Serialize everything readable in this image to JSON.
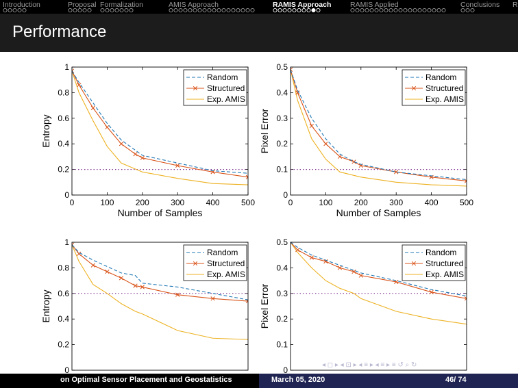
{
  "nav": {
    "sections": [
      {
        "label": "Introduction",
        "dots": 5,
        "filled": -1
      },
      {
        "label": "Proposal",
        "dots": 5,
        "filled": -1
      },
      {
        "label": "Formalization",
        "dots": 7,
        "filled": -1
      },
      {
        "label": "AMIS Approach",
        "dots": 18,
        "filled": -1
      },
      {
        "label": "RAMIS Approach",
        "dots": 10,
        "filled": 8,
        "active": true
      },
      {
        "label": "RAMIS Applied",
        "dots": 20,
        "filled": -1
      },
      {
        "label": "Conclusions",
        "dots": 3,
        "filled": -1
      },
      {
        "label": "R",
        "dots": 0,
        "filled": -1
      }
    ]
  },
  "frame_title": "Performance",
  "footer": {
    "title": "on Optimal Sensor Placement and Geostatistics",
    "date": "March 05, 2020",
    "page": "46/ 74"
  },
  "beamer_nav_symbols": "◂ ◻ ▸ ◂ ⊡ ▸ ◂ ≡ ▸ ◂ ≡ ▸ ≡ ↺ ⌕ ↻",
  "colors": {
    "random": "#1f77b4",
    "structured": "#d95319",
    "exp": "#edb120",
    "threshold": "#7e2f8e"
  },
  "chart_data": [
    {
      "type": "line",
      "xlabel": "Number of Samples",
      "ylabel": "Entropy",
      "xlim": [
        0,
        500
      ],
      "ylim": [
        0,
        1
      ],
      "xticks": [
        0,
        100,
        200,
        300,
        400,
        500
      ],
      "yticks": [
        0,
        0.2,
        0.4,
        0.6,
        0.8,
        1
      ],
      "ytick_labels": [
        "0",
        "0.2",
        "0.4",
        "0.6",
        "0.8",
        "1"
      ],
      "threshold": 0.2,
      "legend": "top-right",
      "series": [
        {
          "name": "Random",
          "style": "dashed",
          "x": [
            0,
            20,
            60,
            100,
            140,
            180,
            200,
            300,
            400,
            500
          ],
          "y": [
            0.97,
            0.88,
            0.72,
            0.56,
            0.43,
            0.35,
            0.31,
            0.25,
            0.19,
            0.17
          ]
        },
        {
          "name": "Structured",
          "style": "marker",
          "x": [
            0,
            20,
            60,
            100,
            140,
            180,
            200,
            300,
            400,
            500
          ],
          "y": [
            0.97,
            0.86,
            0.68,
            0.53,
            0.4,
            0.32,
            0.29,
            0.23,
            0.18,
            0.14
          ]
        },
        {
          "name": "Exp. AMIS",
          "style": "solid",
          "x": [
            0,
            20,
            60,
            100,
            140,
            200,
            300,
            400,
            500
          ],
          "y": [
            0.97,
            0.8,
            0.58,
            0.38,
            0.25,
            0.18,
            0.13,
            0.09,
            0.08
          ]
        }
      ]
    },
    {
      "type": "line",
      "xlabel": "Number of Samples",
      "ylabel": "Pixel Error",
      "xlim": [
        0,
        500
      ],
      "ylim": [
        0,
        0.5
      ],
      "xticks": [
        0,
        100,
        200,
        300,
        400,
        500
      ],
      "yticks": [
        0,
        0.1,
        0.2,
        0.3,
        0.4,
        0.5
      ],
      "ytick_labels": [
        "0",
        "0.1",
        "0.2",
        "0.3",
        "0.4",
        "0.5"
      ],
      "threshold": 0.1,
      "legend": "top-right",
      "series": [
        {
          "name": "Random",
          "style": "dashed",
          "x": [
            0,
            20,
            60,
            100,
            140,
            180,
            200,
            300,
            400,
            500
          ],
          "y": [
            0.49,
            0.41,
            0.3,
            0.22,
            0.16,
            0.13,
            0.12,
            0.09,
            0.075,
            0.06
          ]
        },
        {
          "name": "Structured",
          "style": "marker",
          "x": [
            0,
            20,
            60,
            100,
            140,
            180,
            200,
            300,
            400,
            500
          ],
          "y": [
            0.49,
            0.4,
            0.27,
            0.2,
            0.15,
            0.13,
            0.115,
            0.09,
            0.07,
            0.055
          ]
        },
        {
          "name": "Exp. AMIS",
          "style": "solid",
          "x": [
            0,
            20,
            60,
            100,
            140,
            200,
            300,
            400,
            500
          ],
          "y": [
            0.49,
            0.37,
            0.22,
            0.14,
            0.09,
            0.07,
            0.05,
            0.04,
            0.035
          ]
        }
      ]
    },
    {
      "type": "line",
      "xlabel": "",
      "ylabel": "Entropy",
      "xlim": [
        0,
        500
      ],
      "ylim": [
        0,
        1
      ],
      "xticks": [],
      "yticks": [
        0,
        0.2,
        0.4,
        0.6,
        0.8,
        1
      ],
      "ytick_labels": [
        "0",
        "0.2",
        "0.4",
        "0.6",
        "0.8",
        "1"
      ],
      "threshold": 0.6,
      "legend": "top-right",
      "series": [
        {
          "name": "Random",
          "style": "dashed",
          "x": [
            0,
            20,
            60,
            100,
            140,
            180,
            200,
            300,
            400,
            500
          ],
          "y": [
            0.98,
            0.92,
            0.86,
            0.81,
            0.76,
            0.74,
            0.68,
            0.65,
            0.6,
            0.55
          ]
        },
        {
          "name": "Structured",
          "style": "marker",
          "x": [
            0,
            20,
            60,
            100,
            140,
            180,
            200,
            300,
            400,
            500
          ],
          "y": [
            0.98,
            0.91,
            0.82,
            0.77,
            0.72,
            0.66,
            0.65,
            0.59,
            0.56,
            0.54
          ]
        },
        {
          "name": "Exp. AMIS",
          "style": "solid",
          "x": [
            0,
            20,
            60,
            100,
            140,
            180,
            200,
            300,
            400,
            500
          ],
          "y": [
            0.98,
            0.85,
            0.67,
            0.6,
            0.52,
            0.46,
            0.44,
            0.31,
            0.25,
            0.24
          ]
        }
      ]
    },
    {
      "type": "line",
      "xlabel": "",
      "ylabel": "Pixel Error",
      "xlim": [
        0,
        500
      ],
      "ylim": [
        0,
        0.5
      ],
      "xticks": [],
      "yticks": [
        0,
        0.1,
        0.2,
        0.3,
        0.4,
        0.5
      ],
      "ytick_labels": [
        "0",
        "0.1",
        "0.2",
        "0.3",
        "0.4",
        "0.5"
      ],
      "threshold": 0.3,
      "legend": "top-right",
      "series": [
        {
          "name": "Random",
          "style": "dashed",
          "x": [
            0,
            20,
            60,
            100,
            140,
            180,
            200,
            300,
            400,
            500
          ],
          "y": [
            0.5,
            0.48,
            0.45,
            0.43,
            0.41,
            0.39,
            0.38,
            0.35,
            0.315,
            0.29
          ]
        },
        {
          "name": "Structured",
          "style": "marker",
          "x": [
            0,
            20,
            60,
            100,
            140,
            180,
            200,
            300,
            400,
            500
          ],
          "y": [
            0.5,
            0.47,
            0.44,
            0.425,
            0.4,
            0.385,
            0.37,
            0.345,
            0.305,
            0.28
          ]
        },
        {
          "name": "Exp. AMIS",
          "style": "solid",
          "x": [
            0,
            20,
            60,
            100,
            140,
            180,
            200,
            300,
            400,
            500
          ],
          "y": [
            0.5,
            0.46,
            0.4,
            0.35,
            0.32,
            0.3,
            0.28,
            0.23,
            0.2,
            0.18
          ]
        }
      ]
    }
  ]
}
